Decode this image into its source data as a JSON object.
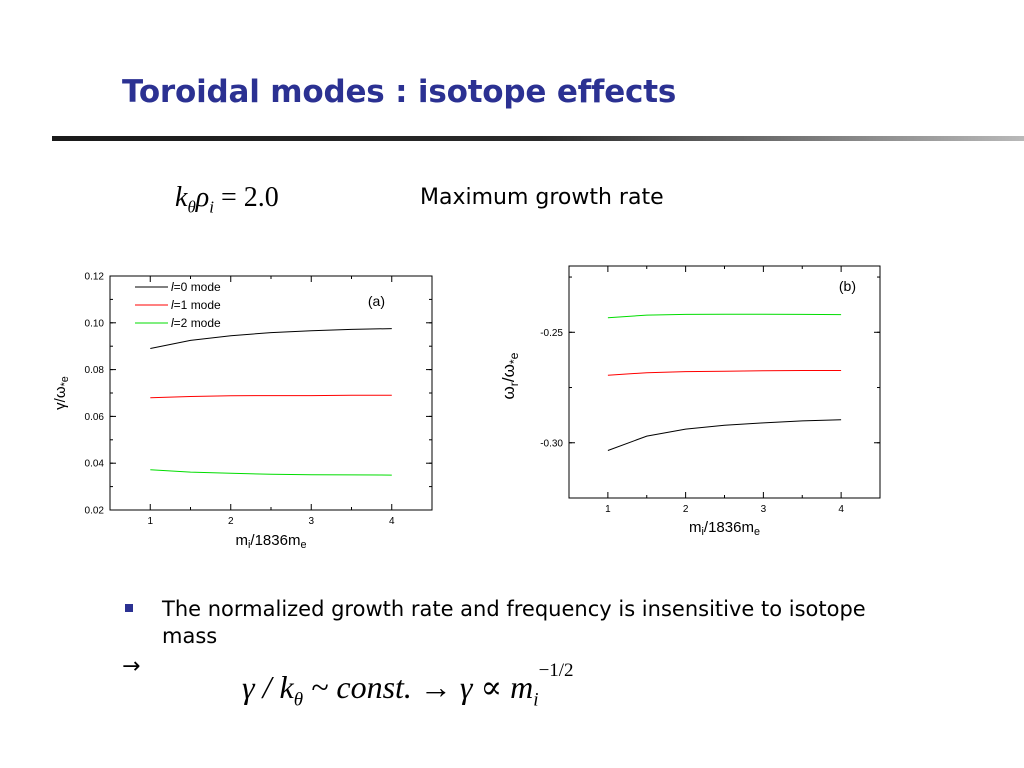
{
  "slide": {
    "title": "Toroidal modes : isotope effects",
    "formula_top": {
      "k": "k",
      "theta": "θ",
      "rho": "ρ",
      "i": "i",
      "rhs": " = 2.0"
    },
    "max_growth_label": "Maximum growth rate",
    "bullet_text": "The normalized growth rate and frequency is insensitive to isotope mass",
    "arrow_symbol": "→",
    "formula_bottom": {
      "part1": "γ / k",
      "sub1": "θ",
      "part2": " ~ const. → γ ∝ m",
      "sub2": "i",
      "sup": "−1/2"
    },
    "title_color": "#2b3192",
    "bullet_icon": "square-bullet-icon"
  },
  "chart_data": [
    {
      "type": "line",
      "panel_label": "(a)",
      "xlabel": {
        "main": "m",
        "sub1": "i",
        "mid": "/1836m",
        "sub2": "e"
      },
      "ylabel": {
        "main": "γ/ω",
        "sub": "*e"
      },
      "xlim": [
        0.5,
        4.5
      ],
      "ylim": [
        0.02,
        0.12
      ],
      "xticks": [
        1,
        2,
        3,
        4
      ],
      "yticks": [
        0.02,
        0.04,
        0.06,
        0.08,
        0.1,
        0.12
      ],
      "ytick_labels": [
        "0.02",
        "0.04",
        "0.06",
        "0.08",
        "0.10",
        "0.12"
      ],
      "x": [
        1,
        1.5,
        2,
        2.5,
        3,
        3.5,
        4
      ],
      "legend_position": "top-left",
      "series": [
        {
          "name_prefix": "l",
          "name": "=0 mode",
          "color": "#000000",
          "values": [
            0.089,
            0.0925,
            0.0945,
            0.0958,
            0.0966,
            0.0972,
            0.0975
          ]
        },
        {
          "name_prefix": "l",
          "name": "=1 mode",
          "color": "#ff0000",
          "values": [
            0.068,
            0.0685,
            0.0688,
            0.0689,
            0.0689,
            0.069,
            0.069
          ]
        },
        {
          "name_prefix": "l",
          "name": "=2 mode",
          "color": "#00dd00",
          "values": [
            0.0372,
            0.0362,
            0.0357,
            0.0353,
            0.0351,
            0.035,
            0.0349
          ]
        }
      ]
    },
    {
      "type": "line",
      "panel_label": "(b)",
      "xlabel": {
        "main": "m",
        "sub1": "i",
        "mid": "/1836m",
        "sub2": "e"
      },
      "ylabel": {
        "main": "ω",
        "sub1": "r",
        "mid": "/ω",
        "sub2": "*e"
      },
      "xlim": [
        0.5,
        4.5
      ],
      "ylim": [
        -0.325,
        -0.22
      ],
      "xticks": [
        1,
        2,
        3,
        4
      ],
      "yticks": [
        -0.3,
        -0.25
      ],
      "ytick_labels": [
        "-0.30",
        "-0.25"
      ],
      "x": [
        1,
        1.5,
        2,
        2.5,
        3,
        3.5,
        4
      ],
      "series": [
        {
          "color": "#00dd00",
          "values": [
            -0.2434,
            -0.2422,
            -0.2419,
            -0.2418,
            -0.2418,
            -0.2419,
            -0.242
          ]
        },
        {
          "color": "#ff0000",
          "values": [
            -0.2694,
            -0.2683,
            -0.2678,
            -0.2676,
            -0.2674,
            -0.2673,
            -0.2673
          ]
        },
        {
          "color": "#000000",
          "values": [
            -0.3035,
            -0.297,
            -0.2938,
            -0.2921,
            -0.291,
            -0.2901,
            -0.2896
          ]
        }
      ]
    }
  ]
}
